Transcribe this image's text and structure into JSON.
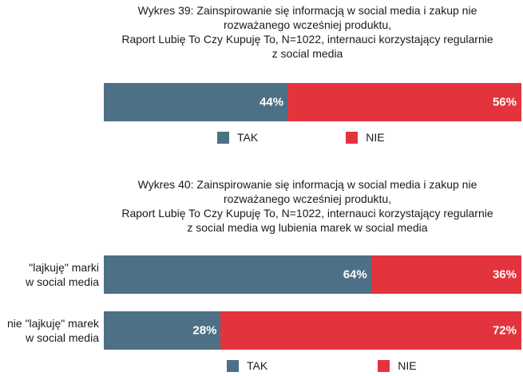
{
  "chart_data": [
    {
      "type": "bar",
      "orientation": "horizontal-stacked-100",
      "title_lines": [
        "Wykres 39: Zainspirowanie się informacją w social media i zakup nie",
        "rozważanego wcześniej produktu,",
        "Raport Lubię To Czy Kupuję To, N=1022, internauci korzystający regularnie",
        "z social media"
      ],
      "categories": [
        ""
      ],
      "series": [
        {
          "name": "TAK",
          "values": [
            44
          ],
          "labels": [
            "44%"
          ],
          "color": "#4e7086"
        },
        {
          "name": "NIE",
          "values": [
            56
          ],
          "labels": [
            "56%"
          ],
          "color": "#e3343d"
        }
      ],
      "legend": [
        "TAK",
        "NIE"
      ],
      "legend_position": "bottom"
    },
    {
      "type": "bar",
      "orientation": "horizontal-stacked-100",
      "title_lines": [
        "Wykres 40: Zainspirowanie się informacją w social media i zakup nie",
        "rozważanego wcześniej produktu,",
        "Raport Lubię To Czy Kupuję To, N=1022, internauci korzystający regularnie",
        "z social media wg lubienia marek w social media"
      ],
      "categories": [
        [
          "\"lajkuję\" marki",
          "w social media"
        ],
        [
          "nie \"lajkuję\" marek",
          "w social media"
        ]
      ],
      "series": [
        {
          "name": "TAK",
          "values": [
            64,
            28
          ],
          "labels": [
            "64%",
            "28%"
          ],
          "color": "#4e7086"
        },
        {
          "name": "NIE",
          "values": [
            36,
            72
          ],
          "labels": [
            "36%",
            "72%"
          ],
          "color": "#e3343d"
        }
      ],
      "legend": [
        "TAK",
        "NIE"
      ],
      "legend_position": "bottom"
    }
  ]
}
